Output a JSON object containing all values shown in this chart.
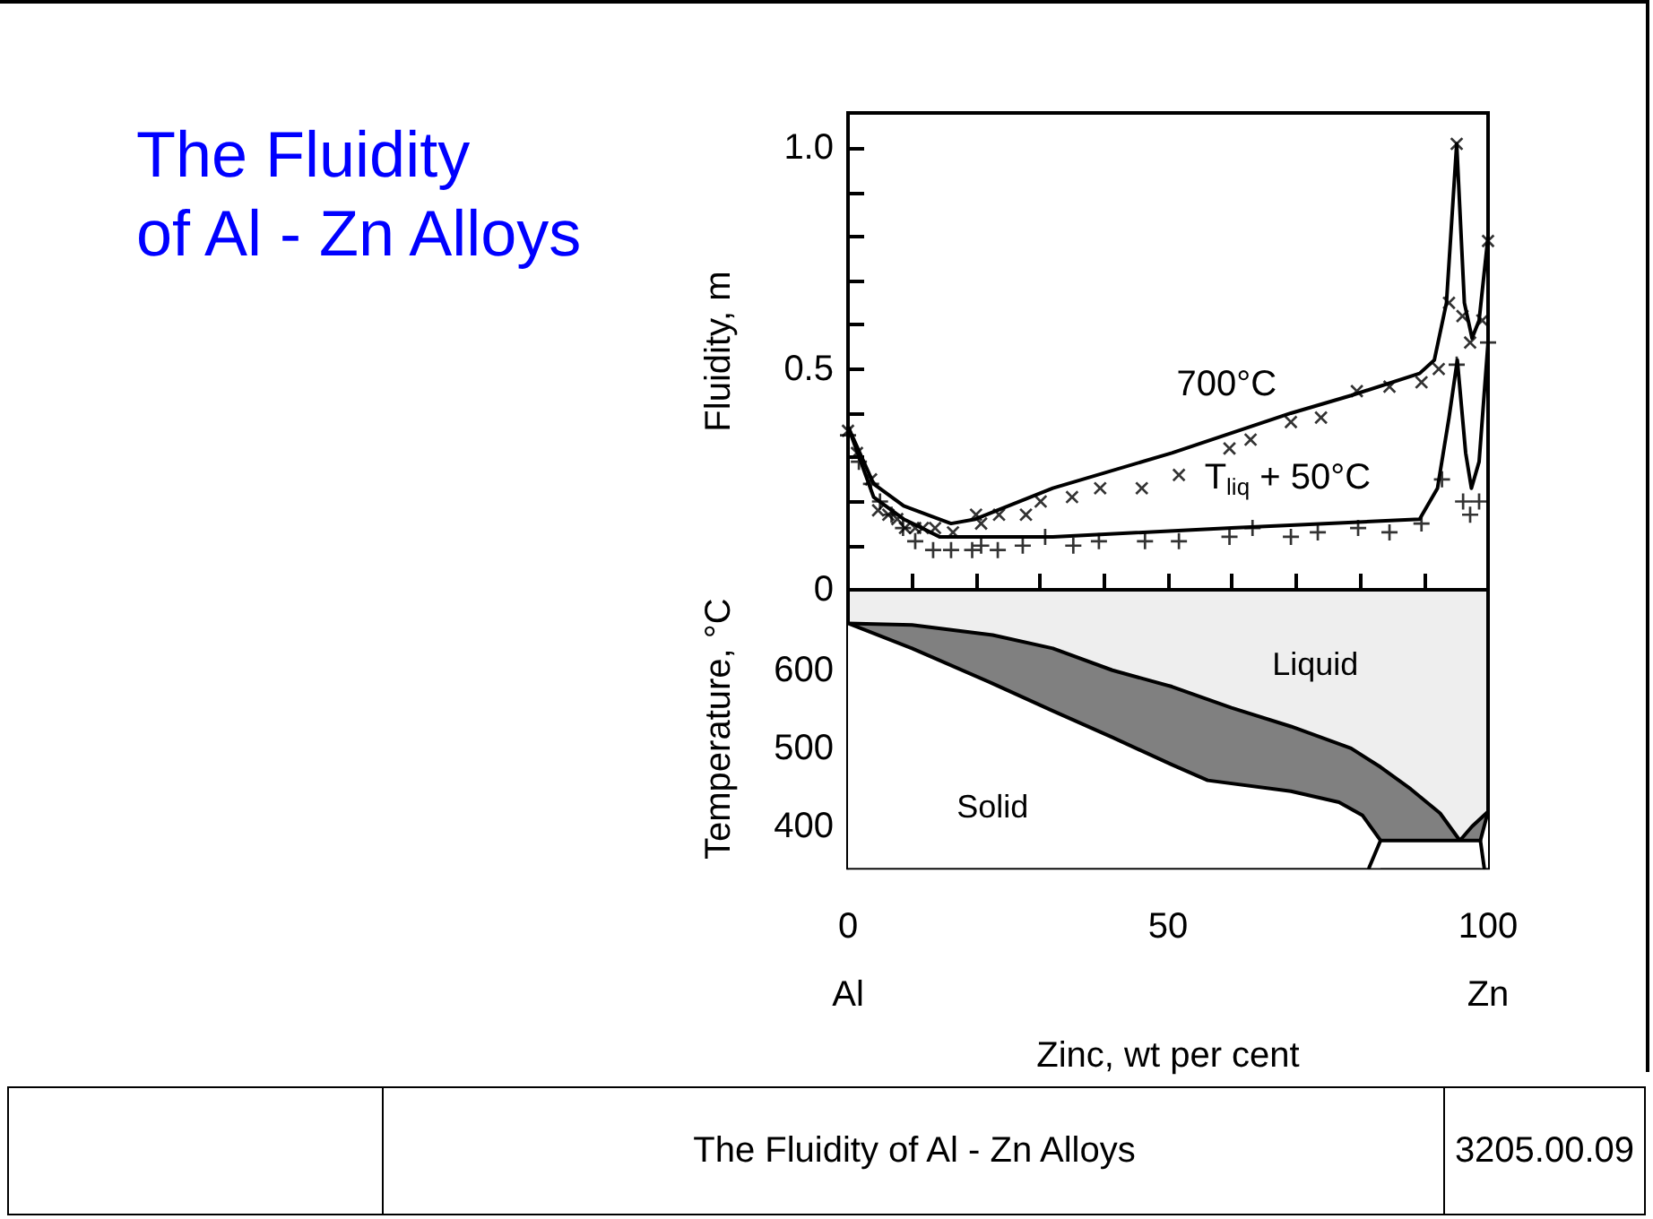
{
  "chart_data": [
    {
      "type": "line",
      "title": "The Fluidity\nof Al - Zn Alloys",
      "ylabel": "Fluidity, m",
      "xlim": [
        0,
        100
      ],
      "ylim": [
        0,
        1.08
      ],
      "xticks": [
        0,
        {
          "value": 10,
          "label": null
        },
        {
          "value": 20,
          "label": null
        },
        {
          "value": 30,
          "label": null
        },
        {
          "value": 40,
          "label": null
        },
        50,
        {
          "value": 60,
          "label": null
        },
        {
          "value": 70,
          "label": null
        },
        {
          "value": 80,
          "label": null
        },
        {
          "value": 90,
          "label": null
        },
        100
      ],
      "yticks": [
        0,
        {
          "value": 0.1,
          "label": null
        },
        {
          "value": 0.2,
          "label": null
        },
        {
          "value": 0.3,
          "label": null
        },
        {
          "value": 0.4,
          "label": null
        },
        0.5,
        {
          "value": 0.6,
          "label": null
        },
        {
          "value": 0.7,
          "label": null
        },
        {
          "value": 0.8,
          "label": null
        },
        {
          "value": 0.9,
          "label": null
        },
        {
          "value": 1,
          "label": "1.0"
        }
      ],
      "tick_labels": "y",
      "line_style": "solid",
      "marker": "none",
      "series": [
        {
          "name": "700°C",
          "color": "#000000",
          "x": [
            0,
            4,
            8.7,
            16.1,
            19.9,
            32,
            50.6,
            69.2,
            78.6,
            89.3,
            91.6,
            93.5,
            95.1,
            96.3,
            97.5,
            98.6,
            100
          ],
          "values": [
            0.37,
            0.24,
            0.19,
            0.15,
            0.16,
            0.23,
            0.31,
            0.4,
            0.44,
            0.49,
            0.52,
            0.65,
            1.01,
            0.65,
            0.57,
            0.61,
            0.8
          ]
        },
        {
          "name": "T$_{liq}$ + 50°C",
          "color": "#000000",
          "x": [
            0,
            4,
            8.7,
            14.3,
            32,
            59.9,
            89.3,
            92.1,
            93.9,
            95.2,
            96.5,
            97.4,
            98.6,
            100
          ],
          "values": [
            0.37,
            0.21,
            0.16,
            0.12,
            0.12,
            0.14,
            0.16,
            0.23,
            0.39,
            0.52,
            0.31,
            0.23,
            0.29,
            0.56
          ]
        },
        {
          "type": "scatter",
          "marker": "cross",
          "color": "#000000",
          "x": [
            0,
            1.4,
            3.6,
            4.7,
            6.3,
            7.7,
            8.9,
            10.5,
            11.7,
            13.6,
            16.4,
            20,
            20.8,
            23.6,
            27.8,
            30.1,
            35,
            39.4,
            45.9,
            51.7,
            59.6,
            62.9,
            69.2,
            73.9,
            79.5,
            84.6,
            89.6,
            92.3,
            93.9,
            95.1,
            96,
            97.2,
            99.1,
            100
          ],
          "values": [
            0.36,
            0.31,
            0.25,
            0.18,
            0.17,
            0.16,
            0.14,
            0.14,
            0.14,
            0.14,
            0.13,
            0.17,
            0.15,
            0.17,
            0.17,
            0.2,
            0.21,
            0.23,
            0.23,
            0.26,
            0.32,
            0.34,
            0.38,
            0.39,
            0.45,
            0.46,
            0.47,
            0.5,
            0.65,
            1.01,
            0.62,
            0.56,
            0.61,
            0.79
          ]
        },
        {
          "type": "scatter",
          "marker": "cross",
          "color": "#000000",
          "x": [
            0,
            1.7,
            3.6,
            5,
            6.8,
            8.6,
            10.5,
            13.3,
            16.1,
            19.4,
            20.8,
            23.4,
            27.3,
            30.8,
            35.2,
            39.2,
            46.4,
            51.7,
            59.6,
            63.2,
            69.2,
            73.4,
            79.7,
            84.6,
            89.6,
            92.8,
            95.1,
            96.1,
            97.2,
            98.6,
            100
          ],
          "values": [
            0.35,
            0.29,
            0.24,
            0.2,
            0.17,
            0.14,
            0.11,
            0.09,
            0.09,
            0.09,
            0.1,
            0.09,
            0.1,
            0.12,
            0.1,
            0.11,
            0.11,
            0.11,
            0.12,
            0.14,
            0.12,
            0.13,
            0.14,
            0.13,
            0.15,
            0.25,
            0.51,
            0.2,
            0.17,
            0.2,
            0.56
          ]
        }
      ]
    },
    {
      "type": "area",
      "ylabel": "Temperature, °C",
      "xlabel": "Zinc, wt per cent",
      "xlim": [
        0,
        100
      ],
      "ylim": [
        347,
        703
      ],
      "xticks": [
        {
          "value": 0,
          "label": "0\nAl"
        },
        {
          "value": 10,
          "label": null
        },
        {
          "value": 20,
          "label": null
        },
        {
          "value": 30,
          "label": null
        },
        {
          "value": 40,
          "label": null
        },
        50,
        {
          "value": 60,
          "label": null
        },
        {
          "value": 70,
          "label": null
        },
        {
          "value": 80,
          "label": null
        },
        {
          "value": 90,
          "label": null
        },
        {
          "value": 100,
          "label": "100\nZn"
        }
      ],
      "yticks": [
        {
          "value": 650,
          "label": null
        },
        600,
        {
          "value": 550,
          "label": null
        },
        500,
        {
          "value": 450,
          "label": null
        },
        400
      ],
      "annotations": [
        "Liquid",
        "Solid",
        "The Fluidity of Al - Zn Alloys",
        "3205.00.09"
      ],
      "series": [
        {
          "color": "#808080",
          "x": [
            0,
            10,
            22.6,
            32,
            41.3,
            50.6,
            59.9,
            69.2,
            78.6,
            83.2,
            87.9,
            92.5,
            95.6,
            97.5,
            100
          ],
          "values": [
            660,
            658,
            645,
            628,
            600,
            579,
            552,
            528,
            500,
            476,
            448,
            417,
            382,
            400,
            419
          ]
        },
        {
          "type": "line",
          "color": "#000000",
          "x": [
            0,
            10,
            22.6,
            32,
            41.3,
            50.6,
            56.2,
            69.2,
            76.7,
            80.4,
            83.2,
            98.8,
            100
          ],
          "values": [
            660,
            628,
            583,
            548,
            514,
            479,
            459,
            445,
            431,
            414,
            382,
            382,
            419
          ]
        },
        {
          "type": "line",
          "color": "#000000",
          "x": [
            83.2,
            81.4
          ],
          "values": [
            382,
            347
          ]
        },
        {
          "type": "line",
          "color": "#000000",
          "x": [
            98.8,
            99.4
          ],
          "values": [
            382,
            347
          ]
        }
      ]
    }
  ]
}
